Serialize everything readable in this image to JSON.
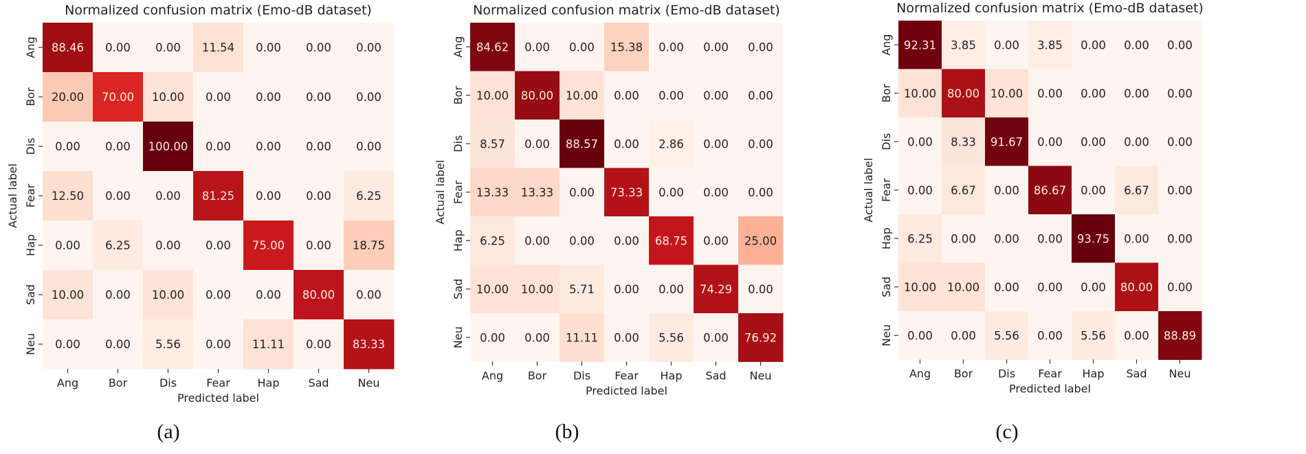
{
  "chart_data": [
    {
      "type": "heatmap",
      "title": "Normalized confusion matrix (Emo-dB dataset)",
      "xlabel": "Predicted label",
      "ylabel": "Actual label",
      "caption": "(a)",
      "x_categories": [
        "Ang",
        "Bor",
        "Dis",
        "Fear",
        "Hap",
        "Sad",
        "Neu"
      ],
      "y_categories": [
        "Ang",
        "Bor",
        "Dis",
        "Fear",
        "Hap",
        "Sad",
        "Neu"
      ],
      "colormap": "Reds",
      "values": [
        [
          "88.46",
          "0.00",
          "0.00",
          "11.54",
          "0.00",
          "0.00",
          "0.00"
        ],
        [
          "20.00",
          "70.00",
          "10.00",
          "0.00",
          "0.00",
          "0.00",
          "0.00"
        ],
        [
          "0.00",
          "0.00",
          "100.00",
          "0.00",
          "0.00",
          "0.00",
          "0.00"
        ],
        [
          "12.50",
          "0.00",
          "0.00",
          "81.25",
          "0.00",
          "0.00",
          "6.25"
        ],
        [
          "0.00",
          "6.25",
          "0.00",
          "0.00",
          "75.00",
          "0.00",
          "18.75"
        ],
        [
          "10.00",
          "0.00",
          "10.00",
          "0.00",
          "0.00",
          "80.00",
          "0.00"
        ],
        [
          "0.00",
          "0.00",
          "5.56",
          "0.00",
          "11.11",
          "0.00",
          "83.33"
        ]
      ]
    },
    {
      "type": "heatmap",
      "title": "Normalized confusion matrix (Emo-dB dataset)",
      "xlabel": "Predicted label",
      "ylabel": "Actual label",
      "caption": "(b)",
      "x_categories": [
        "Ang",
        "Bor",
        "Dis",
        "Fear",
        "Hap",
        "Sad",
        "Neu"
      ],
      "y_categories": [
        "Ang",
        "Bor",
        "Dis",
        "Fear",
        "Hap",
        "Sad",
        "Neu"
      ],
      "colormap": "Reds",
      "values": [
        [
          "84.62",
          "0.00",
          "0.00",
          "15.38",
          "0.00",
          "0.00",
          "0.00"
        ],
        [
          "10.00",
          "80.00",
          "10.00",
          "0.00",
          "0.00",
          "0.00",
          "0.00"
        ],
        [
          "8.57",
          "0.00",
          "88.57",
          "0.00",
          "2.86",
          "0.00",
          "0.00"
        ],
        [
          "13.33",
          "13.33",
          "0.00",
          "73.33",
          "0.00",
          "0.00",
          "0.00"
        ],
        [
          "6.25",
          "0.00",
          "0.00",
          "0.00",
          "68.75",
          "0.00",
          "25.00"
        ],
        [
          "10.00",
          "10.00",
          "5.71",
          "0.00",
          "0.00",
          "74.29",
          "0.00"
        ],
        [
          "0.00",
          "0.00",
          "11.11",
          "0.00",
          "5.56",
          "0.00",
          "76.92"
        ]
      ]
    },
    {
      "type": "heatmap",
      "title": "Normalized confusion matrix (Emo-dB dataset)",
      "xlabel": "Predicted label",
      "ylabel": "Actual label",
      "caption": "(c)",
      "x_categories": [
        "Ang",
        "Bor",
        "Dis",
        "Fear",
        "Hap",
        "Sad",
        "Neu"
      ],
      "y_categories": [
        "Ang",
        "Bor",
        "Dis",
        "Fear",
        "Hap",
        "Sad",
        "Neu"
      ],
      "colormap": "Reds",
      "values": [
        [
          "92.31",
          "3.85",
          "0.00",
          "3.85",
          "0.00",
          "0.00",
          "0.00"
        ],
        [
          "10.00",
          "80.00",
          "10.00",
          "0.00",
          "0.00",
          "0.00",
          "0.00"
        ],
        [
          "0.00",
          "8.33",
          "91.67",
          "0.00",
          "0.00",
          "0.00",
          "0.00"
        ],
        [
          "0.00",
          "6.67",
          "0.00",
          "86.67",
          "0.00",
          "6.67",
          "0.00"
        ],
        [
          "6.25",
          "0.00",
          "0.00",
          "0.00",
          "93.75",
          "0.00",
          "0.00"
        ],
        [
          "10.00",
          "10.00",
          "0.00",
          "0.00",
          "0.00",
          "80.00",
          "0.00"
        ],
        [
          "0.00",
          "0.00",
          "5.56",
          "0.00",
          "5.56",
          "0.00",
          "88.89"
        ]
      ]
    }
  ]
}
